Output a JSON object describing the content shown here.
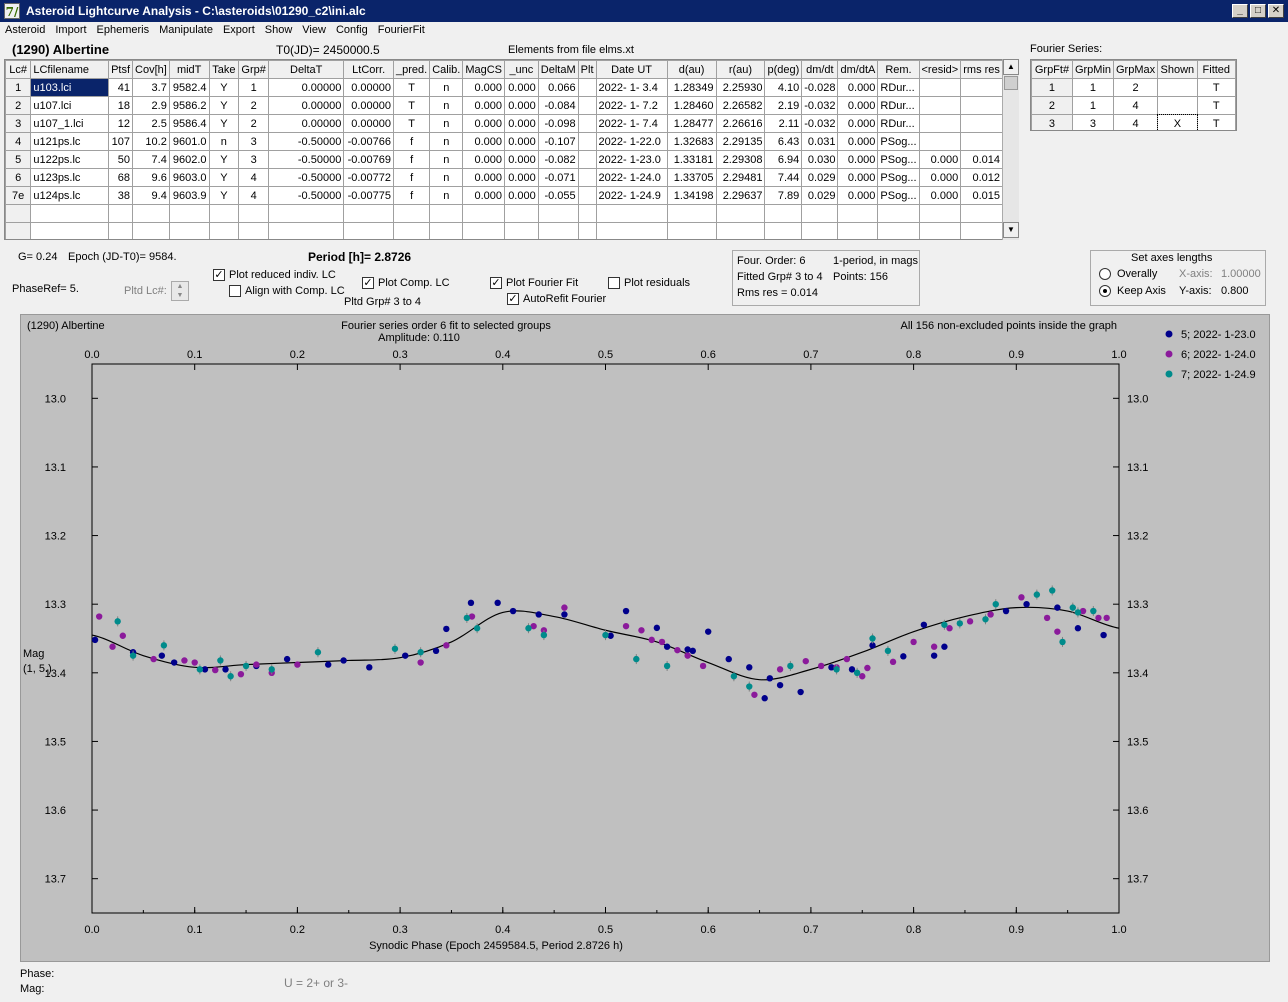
{
  "window": {
    "title": "Asteroid Lightcurve Analysis - C:\\asteroids\\01290_c2\\ini.alc",
    "icon_label": "7/"
  },
  "menu": [
    "Asteroid",
    "Import",
    "Ephemeris",
    "Manipulate",
    "Export",
    "Show",
    "View",
    "Config",
    "FourierFit"
  ],
  "header": {
    "asteroid": "(1290) Albertine",
    "t0": "T0(JD)= 2450000.5",
    "elements": "Elements from file elms.xt",
    "fourier_series_label": "Fourier Series:"
  },
  "lc_table": {
    "columns": [
      "Lc#",
      "LCfilename",
      "Ptsf",
      "Cov[h]",
      "midT",
      "Take",
      "Grp#",
      "DeltaT",
      "LtCorr.",
      "_pred.",
      "Calib.",
      "MagCS",
      "_unc",
      "DeltaM",
      "Plt",
      "Date UT",
      "d(au)",
      "r(au)",
      "p(deg)",
      "dm/dt",
      "dm/dtA",
      "Rem.",
      "<resid>",
      "rms res"
    ],
    "rows": [
      [
        "1",
        "u103.lci",
        "41",
        "3.7",
        "9582.4",
        "Y",
        "1",
        "0.00000",
        "0.00000",
        "T",
        "n",
        "0.000",
        "0.000",
        "0.066",
        "",
        "2022- 1- 3.4",
        "1.28349",
        "2.25930",
        "4.10",
        "-0.028",
        "0.000",
        "RDur...",
        "",
        ""
      ],
      [
        "2",
        "u107.lci",
        "18",
        "2.9",
        "9586.2",
        "Y",
        "2",
        "0.00000",
        "0.00000",
        "T",
        "n",
        "0.000",
        "0.000",
        "-0.084",
        "",
        "2022- 1- 7.2",
        "1.28460",
        "2.26582",
        "2.19",
        "-0.032",
        "0.000",
        "RDur...",
        "",
        ""
      ],
      [
        "3",
        "u107_1.lci",
        "12",
        "2.5",
        "9586.4",
        "Y",
        "2",
        "0.00000",
        "0.00000",
        "T",
        "n",
        "0.000",
        "0.000",
        "-0.098",
        "",
        "2022- 1- 7.4",
        "1.28477",
        "2.26616",
        "2.11",
        "-0.032",
        "0.000",
        "RDur...",
        "",
        ""
      ],
      [
        "4",
        "u121ps.lc",
        "107",
        "10.2",
        "9601.0",
        "n",
        "3",
        "-0.50000",
        "-0.00766",
        "f",
        "n",
        "0.000",
        "0.000",
        "-0.107",
        "",
        "2022- 1-22.0",
        "1.32683",
        "2.29135",
        "6.43",
        "0.031",
        "0.000",
        "PSog...",
        "",
        ""
      ],
      [
        "5",
        "u122ps.lc",
        "50",
        "7.4",
        "9602.0",
        "Y",
        "3",
        "-0.50000",
        "-0.00769",
        "f",
        "n",
        "0.000",
        "0.000",
        "-0.082",
        "",
        "2022- 1-23.0",
        "1.33181",
        "2.29308",
        "6.94",
        "0.030",
        "0.000",
        "PSog...",
        "0.000",
        "0.014"
      ],
      [
        "6",
        "u123ps.lc",
        "68",
        "9.6",
        "9603.0",
        "Y",
        "4",
        "-0.50000",
        "-0.00772",
        "f",
        "n",
        "0.000",
        "0.000",
        "-0.071",
        "",
        "2022- 1-24.0",
        "1.33705",
        "2.29481",
        "7.44",
        "0.029",
        "0.000",
        "PSog...",
        "0.000",
        "0.012"
      ],
      [
        "7e",
        "u124ps.lc",
        "38",
        "9.4",
        "9603.9",
        "Y",
        "4",
        "-0.50000",
        "-0.00775",
        "f",
        "n",
        "0.000",
        "0.000",
        "-0.055",
        "",
        "2022- 1-24.9",
        "1.34198",
        "2.29637",
        "7.89",
        "0.029",
        "0.000",
        "PSog...",
        "0.000",
        "0.015"
      ]
    ]
  },
  "fourier_table": {
    "columns": [
      "GrpFt#",
      "GrpMin",
      "GrpMax",
      "Shown",
      "Fitted"
    ],
    "rows": [
      [
        "1",
        "1",
        "2",
        "",
        "T"
      ],
      [
        "2",
        "1",
        "4",
        "",
        "T"
      ],
      [
        "3",
        "3",
        "4",
        "X",
        "T"
      ]
    ]
  },
  "controls": {
    "g": "G= 0.24",
    "epoch": "Epoch (JD-T0)= 9584.",
    "period": "Period [h]= 2.8726",
    "phaseref": "PhaseRef= 5.",
    "pltd_lc": "Pltd Lc#:",
    "pltd_grp": "Pltd Grp#  3   to   4",
    "cb_plot_reduced": "Plot reduced indiv. LC",
    "cb_align": "Align with Comp. LC",
    "cb_plot_comp": "Plot Comp. LC",
    "cb_plot_fourier": "Plot Fourier Fit",
    "cb_autorefit": "AutoRefit Fourier",
    "cb_plot_residuals": "Plot residuals",
    "four_order": "Four. Order:  6",
    "one_period": "1-period, in mags",
    "fitted_grp": "Fitted Grp# 3 to 4",
    "points": "Points: 156",
    "rms": "Rms res     = 0.014",
    "axes_title": "Set axes lengths",
    "overally": "Overally",
    "keep_axis": "Keep Axis",
    "x_axis_label": "X-axis:",
    "x_axis_value": "1.00000",
    "y_axis_label": "Y-axis:",
    "y_axis_value": "0.800"
  },
  "plot": {
    "title_left": "(1290) Albertine",
    "title_center": "Fourier series order 6 fit to selected groups",
    "amplitude": "Amplitude: 0.110",
    "title_right": "All 156 non-excluded points inside the graph",
    "ylabel": "Mag",
    "ylabel2": "(1, 5.)",
    "xlabel": "Synodic Phase (Epoch 2459584.5, Period 2.8726 h)",
    "legend": [
      {
        "name": "5; 2022- 1-23.0",
        "color": "#00008b"
      },
      {
        "name": "6; 2022- 1-24.0",
        "color": "#8b1a9b"
      },
      {
        "name": "7; 2022- 1-24.9",
        "color": "#008b8b"
      }
    ]
  },
  "chart_data": {
    "type": "scatter",
    "title": "Fourier series order 6 fit to selected groups",
    "xlabel": "Synodic Phase (Epoch 2459584.5, Period 2.8726 h)",
    "ylabel": "Mag (1, 5.)",
    "xlim": [
      0.0,
      1.0
    ],
    "ylim": [
      13.75,
      12.95
    ],
    "y_inverted": true,
    "x_ticks": [
      "0.0",
      "0.1",
      "0.2",
      "0.3",
      "0.4",
      "0.5",
      "0.6",
      "0.7",
      "0.8",
      "0.9",
      "1.0"
    ],
    "y_ticks": [
      "13.0",
      "13.1",
      "13.2",
      "13.3",
      "13.4",
      "13.5",
      "13.6",
      "13.7"
    ],
    "grid": false,
    "legend_position": "top-right",
    "fit_curve": {
      "x": [
        0.0,
        0.05,
        0.1,
        0.15,
        0.2,
        0.25,
        0.3,
        0.35,
        0.4,
        0.45,
        0.5,
        0.55,
        0.6,
        0.65,
        0.7,
        0.75,
        0.8,
        0.85,
        0.9,
        0.95,
        1.0
      ],
      "y": [
        13.345,
        13.375,
        13.392,
        13.388,
        13.385,
        13.382,
        13.378,
        13.355,
        13.312,
        13.318,
        13.338,
        13.355,
        13.385,
        13.41,
        13.395,
        13.37,
        13.34,
        13.318,
        13.305,
        13.31,
        13.335
      ]
    },
    "series": [
      {
        "name": "5; 2022- 1-23.0",
        "x": [
          0.003,
          0.04,
          0.068,
          0.08,
          0.11,
          0.13,
          0.16,
          0.19,
          0.23,
          0.245,
          0.27,
          0.305,
          0.335,
          0.345,
          0.369,
          0.395,
          0.41,
          0.435,
          0.46,
          0.505,
          0.52,
          0.55,
          0.56,
          0.58,
          0.585,
          0.6,
          0.62,
          0.64,
          0.655,
          0.66,
          0.67,
          0.69,
          0.72,
          0.74,
          0.76,
          0.79,
          0.81,
          0.82,
          0.83,
          0.89,
          0.91,
          0.94,
          0.96,
          0.985
        ],
        "y": [
          13.352,
          13.37,
          13.375,
          13.385,
          13.395,
          13.395,
          13.39,
          13.38,
          13.388,
          13.382,
          13.392,
          13.375,
          13.368,
          13.336,
          13.298,
          13.298,
          13.31,
          13.315,
          13.315,
          13.346,
          13.31,
          13.3345,
          13.362,
          13.366,
          13.368,
          13.34,
          13.38,
          13.392,
          13.437,
          13.408,
          13.418,
          13.428,
          13.392,
          13.395,
          13.36,
          13.376,
          13.33,
          13.375,
          13.362,
          13.31,
          13.3,
          13.305,
          13.335,
          13.345
        ]
      },
      {
        "name": "6; 2022- 1-24.0",
        "x": [
          0.007,
          0.02,
          0.03,
          0.06,
          0.09,
          0.1,
          0.12,
          0.145,
          0.16,
          0.175,
          0.2,
          0.32,
          0.345,
          0.37,
          0.43,
          0.44,
          0.46,
          0.52,
          0.535,
          0.545,
          0.555,
          0.57,
          0.58,
          0.595,
          0.645,
          0.67,
          0.695,
          0.71,
          0.725,
          0.735,
          0.75,
          0.755,
          0.78,
          0.8,
          0.82,
          0.835,
          0.855,
          0.875,
          0.905,
          0.93,
          0.94,
          0.965,
          0.98,
          0.988
        ],
        "y": [
          13.318,
          13.362,
          13.346,
          13.38,
          13.382,
          13.385,
          13.396,
          13.402,
          13.388,
          13.4,
          13.388,
          13.385,
          13.36,
          13.318,
          13.332,
          13.338,
          13.305,
          13.332,
          13.338,
          13.352,
          13.355,
          13.367,
          13.375,
          13.39,
          13.432,
          13.395,
          13.383,
          13.39,
          13.392,
          13.38,
          13.405,
          13.393,
          13.384,
          13.355,
          13.362,
          13.335,
          13.325,
          13.315,
          13.29,
          13.32,
          13.34,
          13.31,
          13.32,
          13.32
        ]
      },
      {
        "name": "7; 2022- 1-24.9",
        "x": [
          0.025,
          0.04,
          0.07,
          0.105,
          0.125,
          0.135,
          0.15,
          0.175,
          0.22,
          0.295,
          0.32,
          0.365,
          0.375,
          0.425,
          0.44,
          0.5,
          0.53,
          0.56,
          0.625,
          0.64,
          0.68,
          0.725,
          0.745,
          0.76,
          0.775,
          0.83,
          0.845,
          0.87,
          0.88,
          0.92,
          0.935,
          0.945,
          0.955,
          0.96,
          0.975
        ],
        "y": [
          13.325,
          13.375,
          13.36,
          13.395,
          13.382,
          13.405,
          13.39,
          13.395,
          13.37,
          13.365,
          13.37,
          13.32,
          13.335,
          13.335,
          13.345,
          13.345,
          13.38,
          13.39,
          13.405,
          13.42,
          13.39,
          13.395,
          13.4,
          13.35,
          13.368,
          13.33,
          13.328,
          13.322,
          13.3,
          13.286,
          13.28,
          13.355,
          13.305,
          13.312,
          13.31
        ]
      }
    ]
  }
}
